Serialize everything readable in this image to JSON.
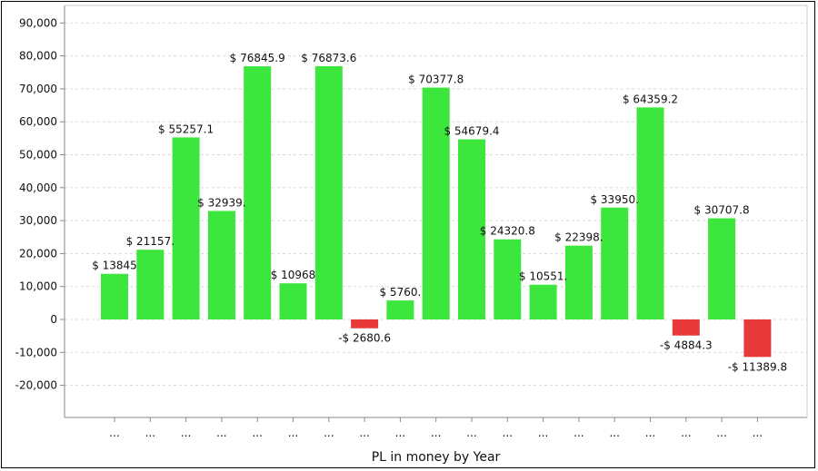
{
  "chart_data": {
    "type": "bar",
    "title": "",
    "xlabel": "PL in money by Year",
    "ylabel": "",
    "ylim": [
      -30000,
      95000
    ],
    "yticks": [
      -20000,
      -10000,
      0,
      10000,
      20000,
      30000,
      40000,
      50000,
      60000,
      70000,
      80000,
      90000
    ],
    "ytick_labels": [
      "-20,000",
      "-10,000",
      "0",
      "10,000",
      "20,000",
      "30,000",
      "40,000",
      "50,000",
      "60,000",
      "70,000",
      "80,000",
      "90,000"
    ],
    "grid": true,
    "categories": [
      "...",
      "...",
      "...",
      "...",
      "...",
      "...",
      "...",
      "...",
      "...",
      "...",
      "...",
      "...",
      "...",
      "...",
      "...",
      "...",
      "...",
      "...",
      "..."
    ],
    "values": [
      13845,
      21157,
      55257.1,
      32939,
      76845.9,
      10968,
      76873.6,
      -2680.6,
      5760,
      70377.8,
      54679.4,
      24320.8,
      10551,
      22398,
      33950,
      64359.2,
      -4884.3,
      30707.8,
      -11389.8
    ],
    "data_labels": [
      "$ 13845",
      "$ 21157.",
      "$ 55257.1",
      "$ 32939.",
      "$ 76845.9",
      "$ 10968",
      "$ 76873.6",
      "-$ 2680.6",
      "$ 5760.",
      "$ 70377.8",
      "$ 54679.4",
      "$ 24320.8",
      "$ 10551.",
      "$ 22398.",
      "$ 33950.",
      "$ 64359.2",
      "-$ 4884.3",
      "$ 30707.8",
      "-$ 11389.8"
    ],
    "colors": {
      "positive": "#3de63d",
      "negative": "#e8393b",
      "grid": "#d9d9d9",
      "axis": "#888888"
    }
  }
}
